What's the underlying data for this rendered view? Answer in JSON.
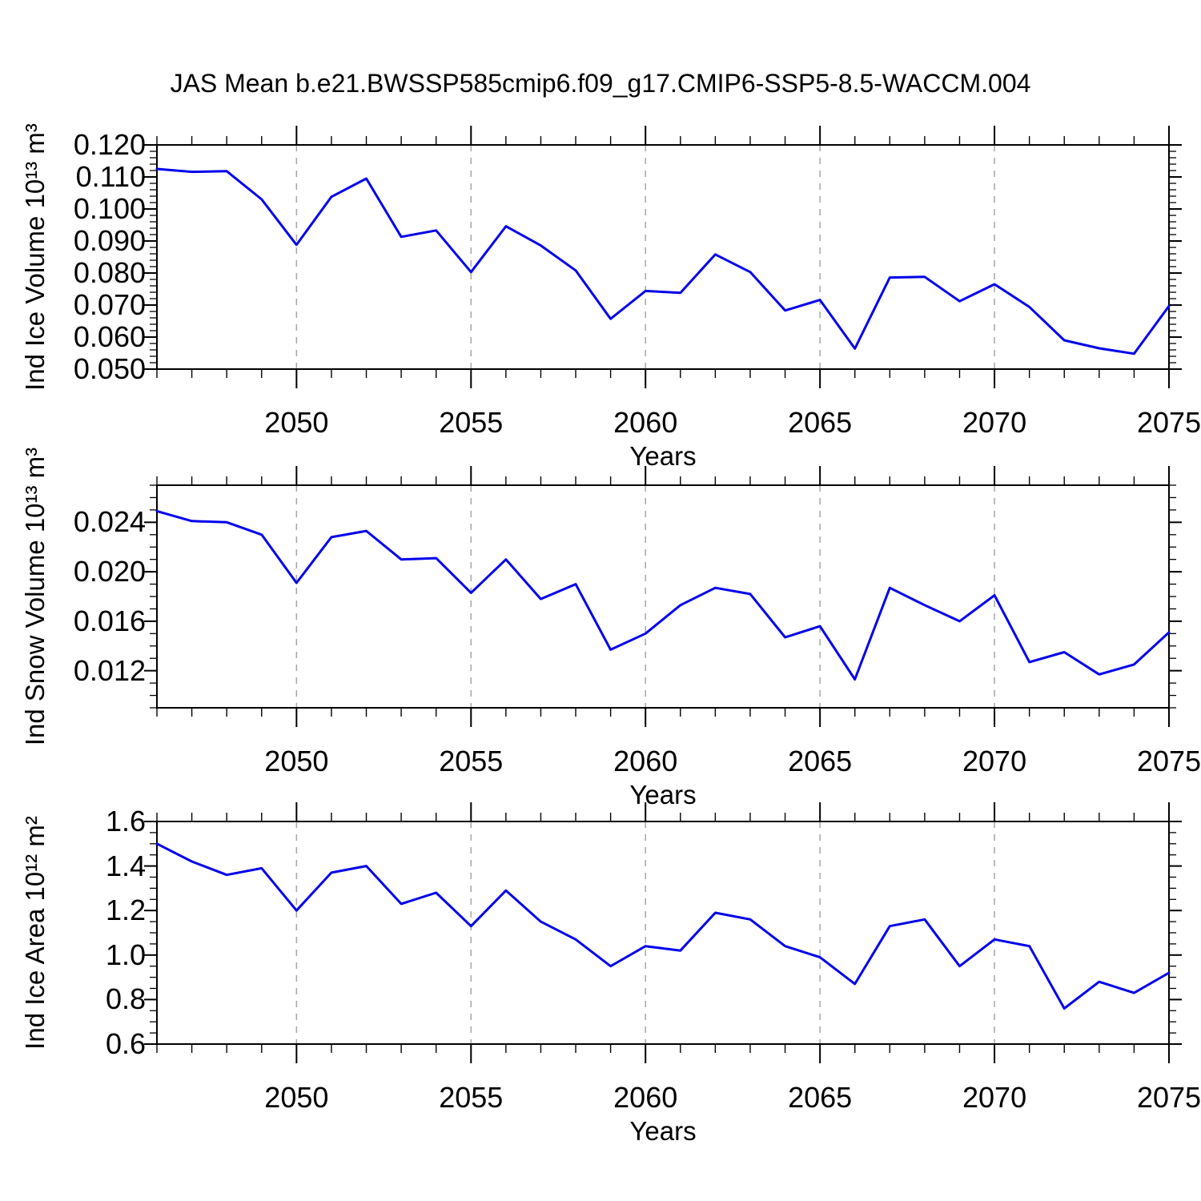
{
  "title": "JAS Mean b.e21.BWSSP585cmip6.f09_g17.CMIP6-SSP5-8.5-WACCM.004",
  "colors": {
    "line": "#0000EE",
    "gridline": "#A6A6A6",
    "axis": "#000000"
  },
  "chart_data": [
    {
      "type": "line",
      "ylabel": "Ind Ice Volume 10¹³ m³",
      "xlabel": "Years",
      "x": [
        2046,
        2047,
        2048,
        2049,
        2050,
        2051,
        2052,
        2053,
        2054,
        2055,
        2056,
        2057,
        2058,
        2059,
        2060,
        2061,
        2062,
        2063,
        2064,
        2065,
        2066,
        2067,
        2068,
        2069,
        2070,
        2071,
        2072,
        2073,
        2074,
        2075
      ],
      "values": [
        0.1125,
        0.1116,
        0.1118,
        0.103,
        0.0888,
        0.1038,
        0.1095,
        0.0913,
        0.0933,
        0.0803,
        0.0946,
        0.0886,
        0.0808,
        0.0657,
        0.0744,
        0.0738,
        0.0858,
        0.0803,
        0.0683,
        0.0716,
        0.0564,
        0.0786,
        0.0788,
        0.0712,
        0.0765,
        0.0694,
        0.059,
        0.0565,
        0.0548,
        0.0697
      ],
      "ylim": [
        0.05,
        0.12
      ],
      "y_major_ticks": [
        0.05,
        0.06,
        0.07,
        0.08,
        0.09,
        0.1,
        0.11,
        0.12
      ],
      "y_tick_labels": [
        "0.050",
        "0.060",
        "0.070",
        "0.080",
        "0.090",
        "0.100",
        "0.110",
        "0.120"
      ],
      "y_minor_step": 0.002,
      "x_major_ticks": [
        2050,
        2055,
        2060,
        2065,
        2070,
        2075
      ],
      "x_tick_labels": [
        "2050",
        "2055",
        "2060",
        "2065",
        "2070",
        "2075"
      ],
      "x_gridlines": [
        2050,
        2055,
        2060,
        2065,
        2070
      ],
      "grid": "vertical-dashed",
      "legend": "none"
    },
    {
      "type": "line",
      "ylabel": "Ind Snow Volume 10¹³ m³",
      "xlabel": "Years",
      "x": [
        2046,
        2047,
        2048,
        2049,
        2050,
        2051,
        2052,
        2053,
        2054,
        2055,
        2056,
        2057,
        2058,
        2059,
        2060,
        2061,
        2062,
        2063,
        2064,
        2065,
        2066,
        2067,
        2068,
        2069,
        2070,
        2071,
        2072,
        2073,
        2074,
        2075
      ],
      "values": [
        0.0249,
        0.0241,
        0.024,
        0.023,
        0.0191,
        0.0228,
        0.0233,
        0.021,
        0.0211,
        0.0183,
        0.021,
        0.0178,
        0.019,
        0.0137,
        0.015,
        0.0173,
        0.0187,
        0.0182,
        0.0147,
        0.0156,
        0.0113,
        0.0187,
        0.0173,
        0.016,
        0.0181,
        0.0127,
        0.0135,
        0.0117,
        0.0125,
        0.0151
      ],
      "ylim": [
        0.009,
        0.027
      ],
      "y_major_ticks": [
        0.012,
        0.016,
        0.02,
        0.024
      ],
      "y_tick_labels": [
        "0.012",
        "0.016",
        "0.020",
        "0.024"
      ],
      "y_minor_step": 0.001,
      "x_major_ticks": [
        2050,
        2055,
        2060,
        2065,
        2070,
        2075
      ],
      "x_tick_labels": [
        "2050",
        "2055",
        "2060",
        "2065",
        "2070",
        "2075"
      ],
      "x_gridlines": [
        2050,
        2055,
        2060,
        2065,
        2070
      ],
      "grid": "vertical-dashed",
      "legend": "none"
    },
    {
      "type": "line",
      "ylabel": "Ind Ice Area 10¹² m²",
      "xlabel": "Years",
      "x": [
        2046,
        2047,
        2048,
        2049,
        2050,
        2051,
        2052,
        2053,
        2054,
        2055,
        2056,
        2057,
        2058,
        2059,
        2060,
        2061,
        2062,
        2063,
        2064,
        2065,
        2066,
        2067,
        2068,
        2069,
        2070,
        2071,
        2072,
        2073,
        2074,
        2075
      ],
      "values": [
        1.5,
        1.42,
        1.36,
        1.39,
        1.2,
        1.37,
        1.4,
        1.23,
        1.28,
        1.13,
        1.29,
        1.15,
        1.07,
        0.95,
        1.04,
        1.02,
        1.19,
        1.16,
        1.04,
        0.99,
        0.87,
        1.13,
        1.16,
        0.95,
        1.07,
        1.04,
        0.76,
        0.88,
        0.83,
        0.92
      ],
      "ylim": [
        0.6,
        1.6
      ],
      "y_major_ticks": [
        0.6,
        0.8,
        1.0,
        1.2,
        1.4,
        1.6
      ],
      "y_tick_labels": [
        "0.6",
        "0.8",
        "1.0",
        "1.2",
        "1.4",
        "1.6"
      ],
      "y_minor_step": 0.05,
      "x_major_ticks": [
        2050,
        2055,
        2060,
        2065,
        2070,
        2075
      ],
      "x_tick_labels": [
        "2050",
        "2055",
        "2060",
        "2065",
        "2070",
        "2075"
      ],
      "x_gridlines": [
        2050,
        2055,
        2060,
        2065,
        2070
      ],
      "grid": "vertical-dashed",
      "legend": "none"
    }
  ]
}
